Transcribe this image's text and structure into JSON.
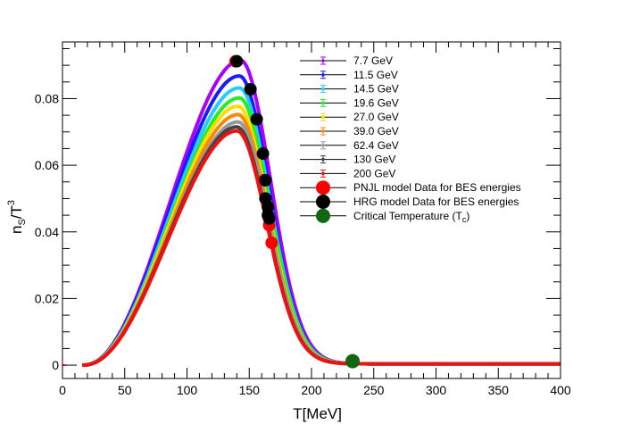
{
  "chart_data": {
    "type": "line",
    "title": "",
    "xlabel": "T[MeV]",
    "ylabel_main": "n",
    "ylabel_sub": "S",
    "ylabel_den": "/T",
    "ylabel_sup": "3",
    "xlim": [
      0,
      400
    ],
    "ylim": [
      -0.004,
      0.097
    ],
    "xticks": [
      0,
      50,
      100,
      150,
      200,
      250,
      300,
      350,
      400
    ],
    "xtick_labels": [
      "0",
      "50",
      "100",
      "150",
      "200",
      "250",
      "300",
      "350",
      "400"
    ],
    "yticks": [
      0,
      0.02,
      0.04,
      0.06,
      0.08
    ],
    "ytick_labels": [
      "0",
      "0.02",
      "0.04",
      "0.06",
      "0.08"
    ],
    "series": [
      {
        "name": "7.7 GeV",
        "color": "#aa00ff",
        "peak_T": 143,
        "peak_y": 0.0915
      },
      {
        "name": "11.5 GeV",
        "color": "#1a1aff",
        "peak_T": 142,
        "peak_y": 0.0868
      },
      {
        "name": "14.5 GeV",
        "color": "#22ccff",
        "peak_T": 142,
        "peak_y": 0.0832
      },
      {
        "name": "19.6 GeV",
        "color": "#22ee22",
        "peak_T": 142,
        "peak_y": 0.0802
      },
      {
        "name": "27.0 GeV",
        "color": "#ffdd00",
        "peak_T": 141,
        "peak_y": 0.0777
      },
      {
        "name": "39.0 GeV",
        "color": "#ff8800",
        "peak_T": 141,
        "peak_y": 0.0752
      },
      {
        "name": "62.4 GeV",
        "color": "#999999",
        "peak_T": 141,
        "peak_y": 0.073
      },
      {
        "name": "130 GeV",
        "color": "#444444",
        "peak_T": 140,
        "peak_y": 0.0715
      },
      {
        "name": "200 GeV",
        "color": "#ee1111",
        "peak_T": 140,
        "peak_y": 0.0703
      }
    ],
    "hrg_points": {
      "name": "HRG model Data for BES energies",
      "color": "#000000",
      "x": [
        140,
        151,
        156,
        161,
        163,
        163,
        165,
        165,
        166
      ],
      "y": [
        0.0912,
        0.0828,
        0.0738,
        0.0635,
        0.0555,
        0.05,
        0.0475,
        0.045,
        0.044
      ]
    },
    "pnjl_points": {
      "name": "PNJL model Data for BES energies",
      "color": "#ff0000",
      "x": [
        139,
        162,
        166,
        168
      ],
      "y": [
        0.0912,
        0.0555,
        0.042,
        0.0367
      ]
    },
    "critical_point": {
      "name": "Critical Temperature (T",
      "name_sub": "c",
      "name_end": ")",
      "color": "#116611",
      "x": [
        233
      ],
      "y": [
        0.0012
      ]
    }
  }
}
